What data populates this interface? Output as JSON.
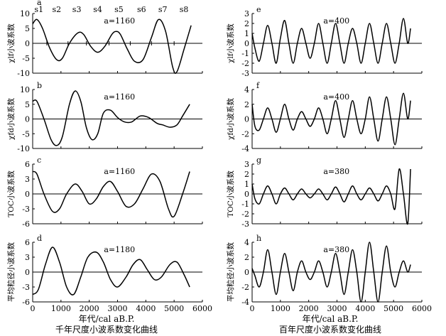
{
  "figure": {
    "left_xlabel": "年代/cal aB.P.",
    "left_caption": "千年尺度小波系数变化曲线",
    "right_xlabel": "年代/cal aB.P.",
    "right_caption": "百年尺度小波系数变化曲线"
  },
  "chart_data": [
    {
      "id": "a",
      "type": "line",
      "panel_label": "a",
      "scale_label": "a=1160",
      "ylabel": "χlf小波系数",
      "ylim": [
        -10,
        10
      ],
      "yticks": [
        -10,
        -5,
        0,
        5,
        10
      ],
      "xlim": [
        0,
        6000
      ],
      "xticks": [
        0,
        1000,
        2000,
        3000,
        4000,
        5000,
        6000
      ],
      "xticklabels": [],
      "stage_labels": [
        "s1",
        "s2",
        "s3",
        "s4",
        "s5",
        "s6",
        "s7",
        "s8"
      ],
      "stage_x": [
        220,
        850,
        1560,
        2300,
        3050,
        3850,
        4600,
        5350
      ],
      "stage_boundaries": [
        500,
        1250,
        1900,
        2700,
        3450,
        4200,
        5000
      ],
      "x": [
        0,
        150,
        350,
        600,
        850,
        1050,
        1300,
        1600,
        1800,
        2050,
        2300,
        2550,
        2800,
        2950,
        3100,
        3350,
        3600,
        3900,
        4200,
        4450,
        4700,
        4950,
        5100,
        5350,
        5600
      ],
      "y": [
        6.5,
        8,
        5,
        -1.5,
        -5.5,
        -5,
        0,
        3.5,
        3,
        -1,
        -3,
        -1,
        3,
        4,
        3,
        -2,
        -6,
        -5.5,
        2,
        8,
        4,
        -8,
        -9.5,
        -2,
        6
      ]
    },
    {
      "id": "b",
      "type": "line",
      "panel_label": "b",
      "scale_label": "a=1160",
      "ylabel": "χfd小波系数",
      "ylim": [
        -10,
        10
      ],
      "yticks": [
        -10,
        -5,
        0,
        5,
        10
      ],
      "xlim": [
        0,
        6000
      ],
      "xticks": [
        0,
        1000,
        2000,
        3000,
        4000,
        5000,
        6000
      ],
      "xticklabels": [],
      "x": [
        0,
        150,
        400,
        650,
        850,
        1050,
        1300,
        1500,
        1700,
        1900,
        2100,
        2300,
        2500,
        2750,
        3000,
        3250,
        3500,
        3800,
        4100,
        4400,
        4600,
        4850,
        5100,
        5300,
        5550
      ],
      "y": [
        6,
        6,
        0,
        -7,
        -9,
        -6,
        5,
        9.5,
        6,
        -3,
        -7,
        -5,
        2,
        3,
        0.5,
        -1,
        -1,
        1,
        0.5,
        -1.5,
        -2,
        -2.8,
        -2,
        1,
        5
      ]
    },
    {
      "id": "c",
      "type": "line",
      "panel_label": "c",
      "scale_label": "a=1160",
      "ylabel": "TOC小波系数",
      "ylim": [
        -6,
        6
      ],
      "yticks": [
        -6,
        -3,
        0,
        3,
        6
      ],
      "xlim": [
        0,
        6000
      ],
      "xticks": [
        0,
        1000,
        2000,
        3000,
        4000,
        5000,
        6000
      ],
      "xticklabels": [],
      "x": [
        0,
        150,
        400,
        700,
        950,
        1200,
        1500,
        1750,
        2000,
        2250,
        2500,
        2750,
        3000,
        3300,
        3600,
        3900,
        4200,
        4500,
        4800,
        5000,
        5300,
        5550
      ],
      "y": [
        4.5,
        4,
        0,
        -3.5,
        -3,
        0,
        2,
        0.5,
        -2,
        -1,
        1.5,
        2.5,
        0.5,
        -2.5,
        -2,
        1,
        4,
        2.5,
        -3,
        -4.5,
        0,
        4.5
      ]
    },
    {
      "id": "d",
      "type": "line",
      "panel_label": "d",
      "scale_label": "a=1180",
      "ylabel": "平均粒径小波系数",
      "ylim": [
        -6,
        6
      ],
      "yticks": [
        -6,
        -3,
        0,
        3,
        6
      ],
      "xlim": [
        0,
        6000
      ],
      "xticks": [
        0,
        1000,
        2000,
        3000,
        4000,
        5000,
        6000
      ],
      "xticklabels": [
        "0",
        "1000",
        "2000",
        "3000",
        "4000",
        "5000",
        "6000"
      ],
      "x": [
        0,
        200,
        450,
        700,
        950,
        1200,
        1450,
        1700,
        1950,
        2250,
        2500,
        2750,
        3000,
        3300,
        3550,
        3800,
        4050,
        4300,
        4550,
        4850,
        5100,
        5350,
        5550
      ],
      "y": [
        -4.5,
        -3.5,
        1.5,
        5,
        2,
        -3,
        -4.5,
        -1,
        3,
        4,
        2,
        -1.5,
        -3,
        -1,
        1.5,
        2.5,
        0.5,
        -1.5,
        -1,
        1.5,
        2,
        -0.5,
        -3
      ]
    },
    {
      "id": "e",
      "type": "line",
      "panel_label": "e",
      "scale_label": "a=400",
      "ylabel": "χlf小波系数",
      "ylim": [
        -3,
        3
      ],
      "yticks": [
        -3,
        -2,
        -1,
        0,
        1,
        2,
        3
      ],
      "xlim": [
        0,
        6000
      ],
      "xticks": [
        0,
        1000,
        2000,
        3000,
        4000,
        5000,
        6000
      ],
      "xticklabels": [],
      "x": [
        0,
        100,
        250,
        400,
        550,
        700,
        850,
        1000,
        1150,
        1300,
        1450,
        1600,
        1750,
        1900,
        2050,
        2200,
        2350,
        2500,
        2650,
        2800,
        2950,
        3100,
        3250,
        3400,
        3550,
        3700,
        3850,
        4000,
        4150,
        4300,
        4450,
        4600,
        4750,
        4900,
        5050,
        5200,
        5350,
        5500,
        5600
      ],
      "y": [
        1,
        -0.5,
        -1.8,
        0,
        1.8,
        0,
        -2,
        0.5,
        2.3,
        0,
        -2,
        0,
        1.5,
        0,
        -1.5,
        0,
        2,
        0,
        -2,
        0,
        2,
        0,
        -2,
        0,
        1.5,
        0,
        -2,
        0,
        2,
        0,
        -2,
        0,
        2,
        0,
        -2,
        0,
        2.5,
        0,
        1.5
      ]
    },
    {
      "id": "f",
      "type": "line",
      "panel_label": "f",
      "scale_label": "a=400",
      "ylabel": "χfd小波系数",
      "ylim": [
        -4,
        4
      ],
      "yticks": [
        -4,
        -2,
        0,
        2,
        4
      ],
      "xlim": [
        0,
        6000
      ],
      "xticks": [
        0,
        1000,
        2000,
        3000,
        4000,
        5000,
        6000
      ],
      "xticklabels": [],
      "x": [
        0,
        100,
        250,
        400,
        550,
        700,
        850,
        1000,
        1150,
        1300,
        1450,
        1600,
        1750,
        1900,
        2050,
        2200,
        2350,
        2500,
        2650,
        2800,
        2950,
        3100,
        3250,
        3400,
        3550,
        3700,
        3850,
        4000,
        4150,
        4300,
        4450,
        4600,
        4750,
        4900,
        5050,
        5200,
        5350,
        5500,
        5600
      ],
      "y": [
        2,
        -1,
        -1.5,
        0,
        1.5,
        0,
        -1.8,
        0,
        2,
        0,
        -1.5,
        0,
        1,
        0,
        -1,
        0,
        1.5,
        0,
        -2,
        0,
        2.5,
        0,
        -2.5,
        0,
        2.5,
        0,
        -2,
        0,
        3,
        0,
        -3,
        0,
        3,
        0,
        -3.5,
        0,
        3.5,
        0,
        2.5
      ]
    },
    {
      "id": "g",
      "type": "line",
      "panel_label": "g",
      "scale_label": "a=380",
      "ylabel": "TOC小波系数",
      "ylim": [
        -3,
        3
      ],
      "yticks": [
        -3,
        -2,
        -1,
        0,
        1,
        2,
        3
      ],
      "xlim": [
        0,
        6000
      ],
      "xticks": [
        0,
        1000,
        2000,
        3000,
        4000,
        5000,
        6000
      ],
      "xticklabels": [],
      "x": [
        0,
        100,
        250,
        400,
        550,
        700,
        850,
        1000,
        1150,
        1300,
        1450,
        1600,
        1750,
        1900,
        2050,
        2200,
        2350,
        2500,
        2650,
        2800,
        2950,
        3100,
        3250,
        3400,
        3550,
        3700,
        3850,
        4000,
        4150,
        4300,
        4450,
        4600,
        4750,
        4900,
        5050,
        5200,
        5350,
        5500,
        5600
      ],
      "y": [
        1,
        -0.5,
        -1,
        0,
        0.8,
        0,
        -1,
        0,
        0.6,
        0,
        -0.6,
        0,
        0.5,
        0,
        -0.4,
        0,
        0.5,
        0,
        -0.6,
        0,
        0.7,
        0,
        -0.8,
        0,
        0.8,
        0,
        -0.6,
        0,
        0.6,
        0,
        -0.7,
        0,
        0.8,
        0,
        -1.5,
        2.5,
        0,
        -3,
        2.5
      ]
    },
    {
      "id": "h",
      "type": "line",
      "panel_label": "h",
      "scale_label": "a=380",
      "ylabel": "平均粒径小波系数",
      "ylim": [
        -4,
        4
      ],
      "yticks": [
        -4,
        -2,
        0,
        2,
        4
      ],
      "xlim": [
        0,
        6000
      ],
      "xticks": [
        0,
        1000,
        2000,
        3000,
        4000,
        5000,
        6000
      ],
      "xticklabels": [
        "0",
        "1000",
        "2000",
        "3000",
        "4000",
        "5000",
        "6000"
      ],
      "x": [
        0,
        100,
        250,
        400,
        550,
        700,
        850,
        1000,
        1150,
        1300,
        1450,
        1600,
        1750,
        1900,
        2050,
        2200,
        2350,
        2500,
        2650,
        2800,
        2950,
        3100,
        3250,
        3400,
        3550,
        3700,
        3850,
        4000,
        4150,
        4300,
        4450,
        4600,
        4750,
        4900,
        5050,
        5200,
        5350,
        5500,
        5600
      ],
      "y": [
        0.5,
        -0.5,
        -2,
        0,
        3,
        0,
        -3,
        0,
        2.5,
        0,
        -2.5,
        0,
        1.5,
        0,
        -1,
        0,
        1.5,
        0,
        -2,
        0,
        2.5,
        0,
        -3,
        0,
        3,
        0,
        -4,
        0,
        4,
        0,
        -4,
        0,
        3.5,
        0,
        -2,
        0,
        1.5,
        0,
        1
      ]
    }
  ]
}
